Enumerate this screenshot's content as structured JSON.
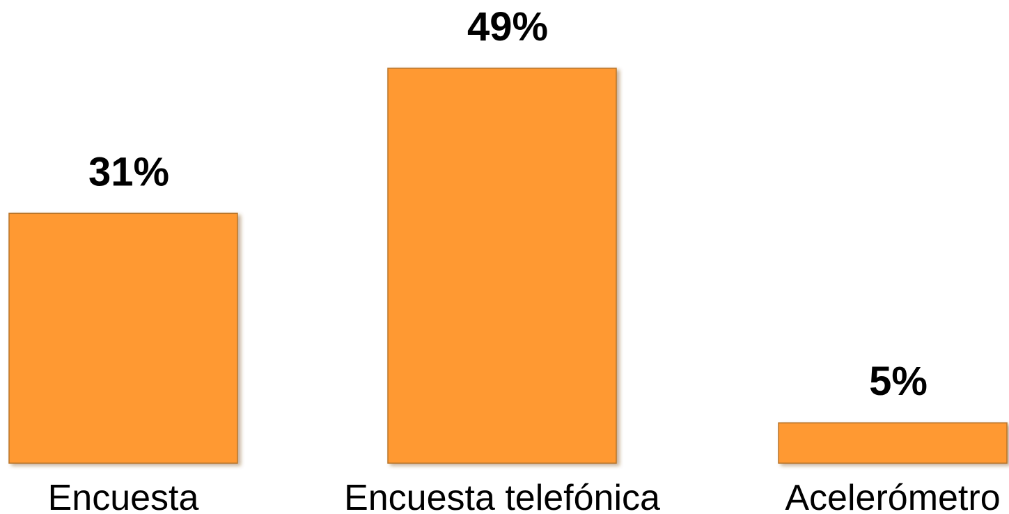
{
  "chart_data": {
    "type": "bar",
    "categories": [
      "Encuesta",
      "Encuesta telefónica",
      "Acelerómetro"
    ],
    "values": [
      31,
      49,
      5
    ],
    "value_labels": [
      "31%",
      "49%",
      "5%"
    ],
    "ylim": [
      0,
      49
    ],
    "grid": false,
    "legend": "none",
    "colors": {
      "bar": "#ff9933",
      "bar_edge": "#b8742a",
      "text": "#000000",
      "background": "#ffffff"
    }
  }
}
